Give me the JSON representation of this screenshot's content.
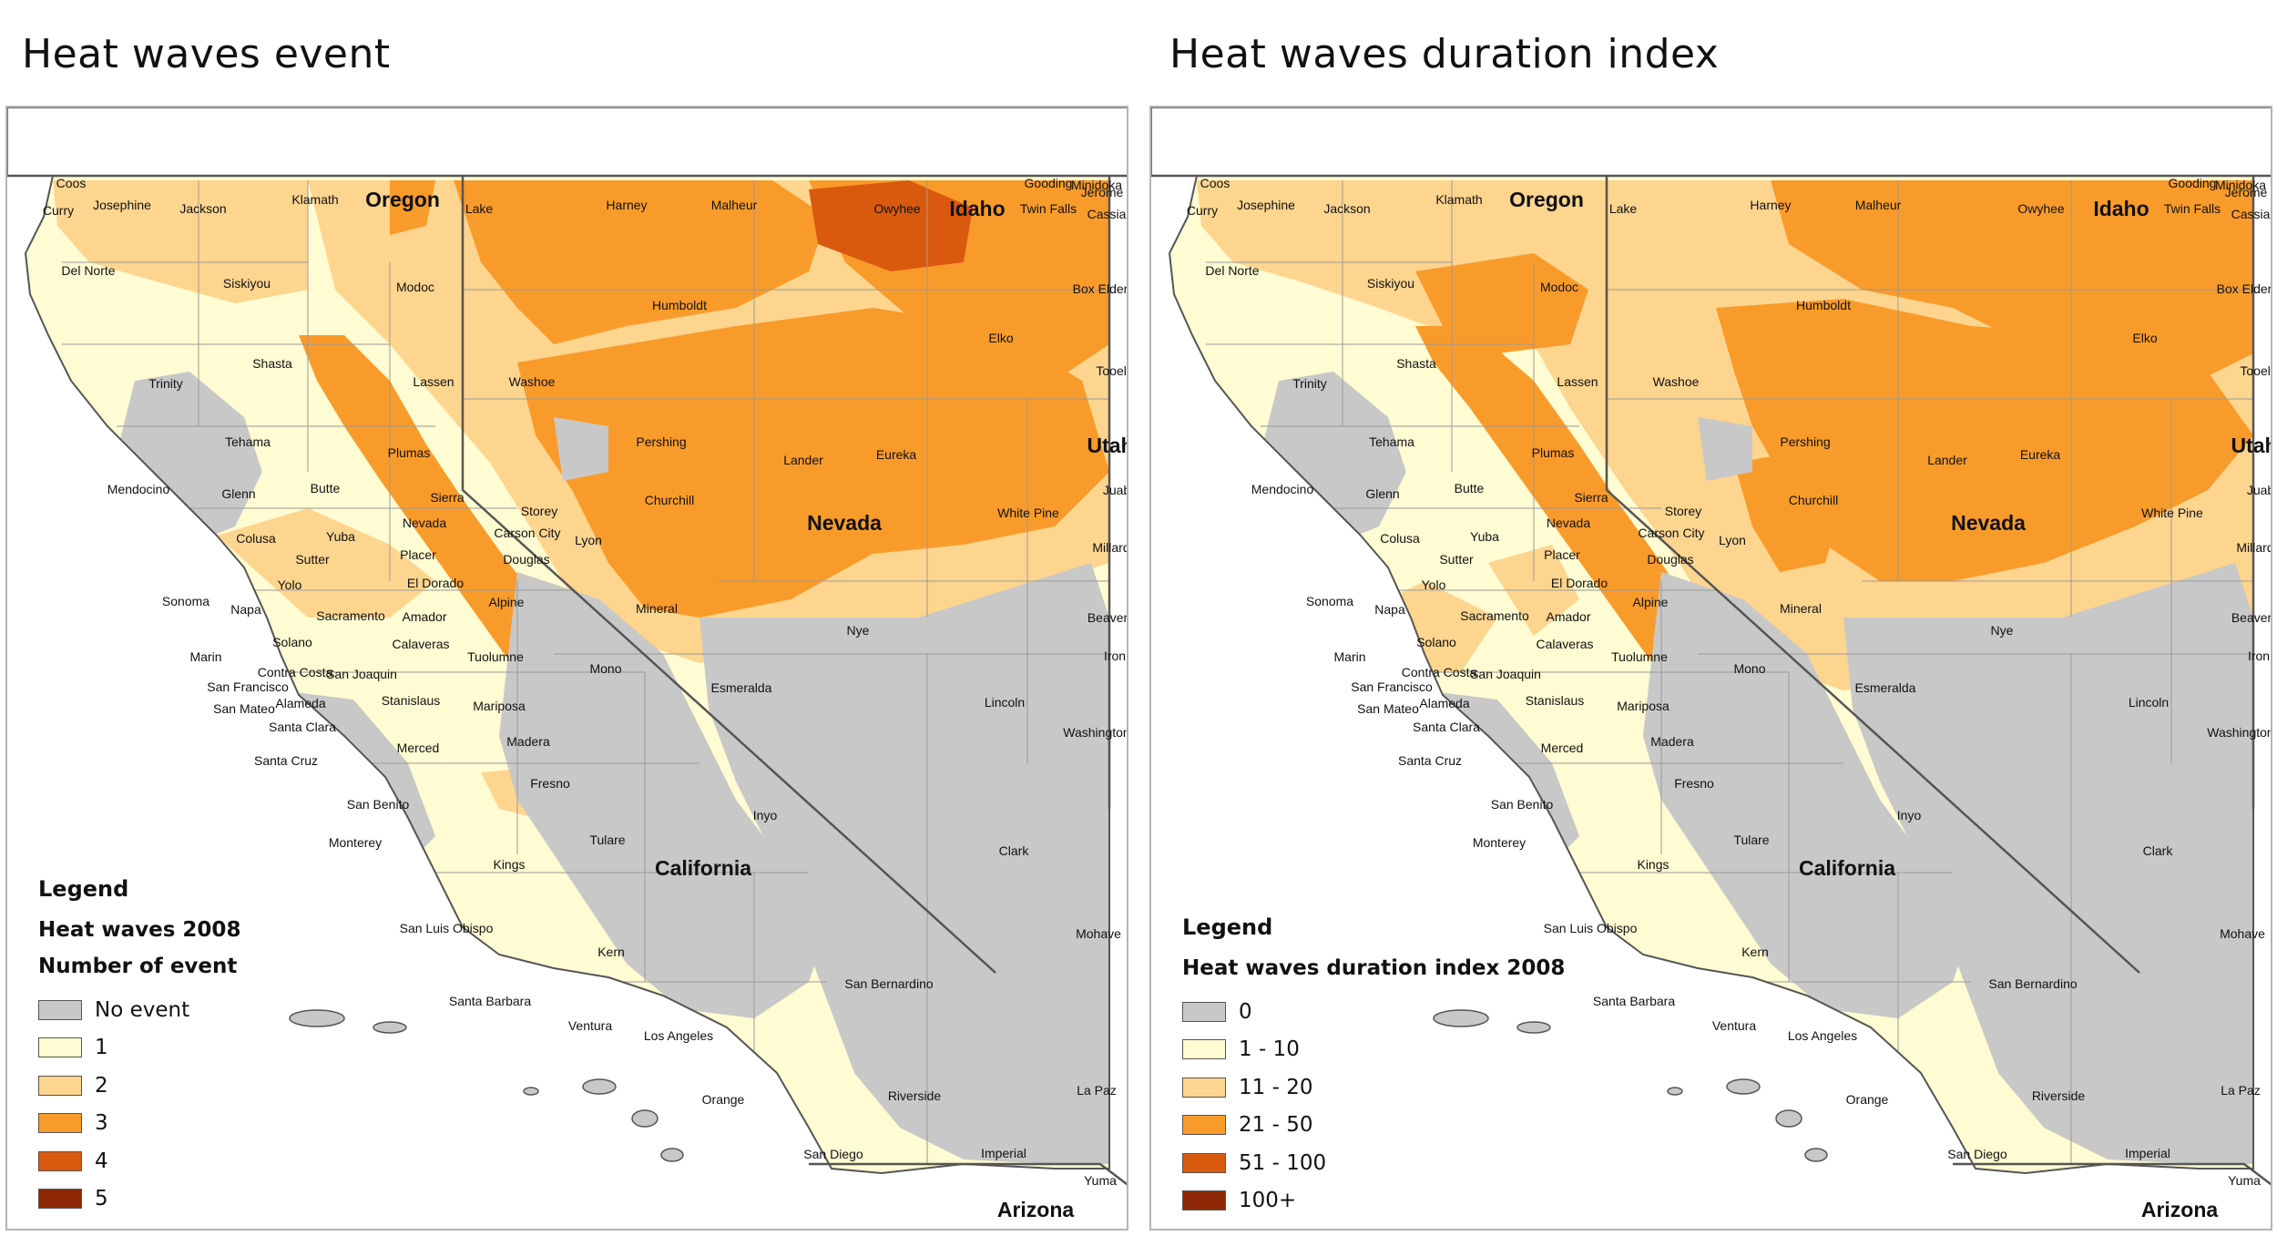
{
  "panels": [
    {
      "title": "Heat waves event",
      "variant": "event",
      "legend": {
        "title": "Legend",
        "subtitles": [
          "Heat waves 2008",
          "Number of event"
        ],
        "items": [
          {
            "label": "No event",
            "color": "#c8c8c8"
          },
          {
            "label": "1",
            "color": "#fffbd2"
          },
          {
            "label": "2",
            "color": "#fdd58f"
          },
          {
            "label": "3",
            "color": "#f99b2b"
          },
          {
            "label": "4",
            "color": "#d95a0f"
          },
          {
            "label": "5",
            "color": "#8e2806"
          }
        ]
      }
    },
    {
      "title": "Heat waves duration index",
      "variant": "duration",
      "legend": {
        "title": "Legend",
        "subtitles": [
          "Heat waves duration index 2008"
        ],
        "items": [
          {
            "label": "0",
            "color": "#c8c8c8"
          },
          {
            "label": "1 - 10",
            "color": "#fffbd2"
          },
          {
            "label": "11 - 20",
            "color": "#fdd58f"
          },
          {
            "label": "21 - 50",
            "color": "#f99b2b"
          },
          {
            "label": "51 - 100",
            "color": "#d95a0f"
          },
          {
            "label": "100+",
            "color": "#8e2806"
          }
        ]
      }
    }
  ],
  "map_labels": {
    "states": [
      "Oregon",
      "Idaho",
      "Nevada",
      "Utah",
      "California",
      "Arizona"
    ],
    "counties": [
      "Coos",
      "Curry",
      "Josephine",
      "Jackson",
      "Klamath",
      "Lake",
      "Harney",
      "Malheur",
      "Owyhee",
      "Gooding",
      "Minidoka",
      "Jerome",
      "Twin Falls",
      "Cassia",
      "Del Norte",
      "Siskiyou",
      "Modoc",
      "Humboldt",
      "Elko",
      "Box Elder",
      "Trinity",
      "Shasta",
      "Lassen",
      "Washoe",
      "Tooele",
      "Pershing",
      "Tehama",
      "Plumas",
      "Lander",
      "Eureka",
      "Mendocino",
      "Glenn",
      "Butte",
      "Sierra",
      "Juab",
      "Churchill",
      "Storey",
      "Colusa",
      "Yuba",
      "Nevada",
      "White Pine",
      "Sutter",
      "Placer",
      "Carson City",
      "Lyon",
      "Millard",
      "Douglas",
      "Yolo",
      "El Dorado",
      "Sonoma",
      "Napa",
      "Sacramento",
      "Amador",
      "Alpine",
      "Mineral",
      "Beaver",
      "Solano",
      "Calaveras",
      "Nye",
      "Marin",
      "Tuolumne",
      "Contra Costa",
      "San Joaquin",
      "Mono",
      "San Francisco",
      "Iron",
      "Esmeralda",
      "San Mateo",
      "Alameda",
      "Stanislaus",
      "Mariposa",
      "Lincoln",
      "Santa Clara",
      "Washington",
      "Merced",
      "Madera",
      "Santa Cruz",
      "Fresno",
      "San Benito",
      "Inyo",
      "Tulare",
      "Monterey",
      "Clark",
      "Kings",
      "San Luis Obispo",
      "Mohave",
      "Kern",
      "San Bernardino",
      "Santa Barbara",
      "Ventura",
      "Los Angeles",
      "La Paz",
      "Orange",
      "Riverside",
      "San Diego",
      "Imperial",
      "Yuma"
    ]
  }
}
